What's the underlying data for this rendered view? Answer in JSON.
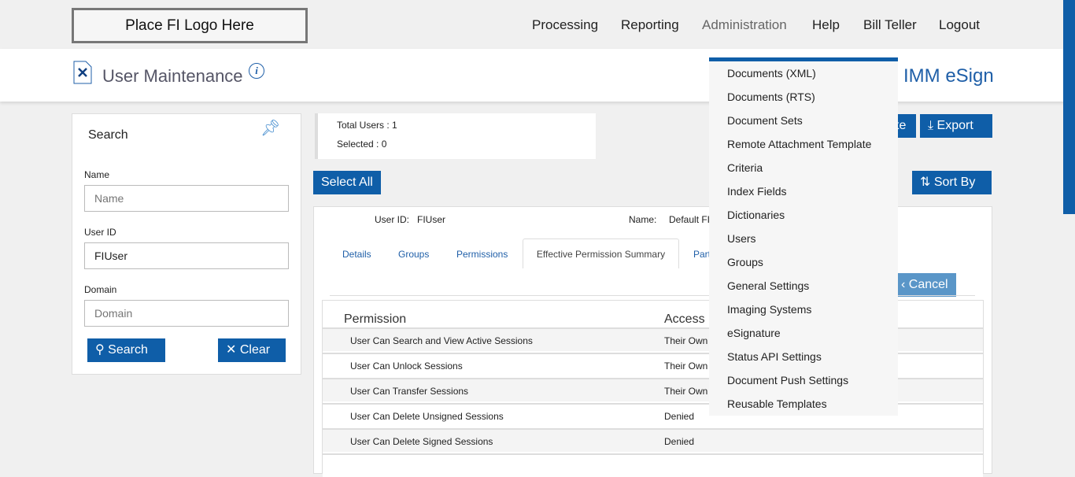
{
  "header": {
    "logo": "Place FI Logo Here",
    "nav": [
      "Processing",
      "Reporting",
      "Administration",
      "Help",
      "Bill Teller",
      "Logout"
    ],
    "page_title": "User Maintenance",
    "brand": "IMM eSign"
  },
  "search": {
    "title": "Search",
    "name_label": "Name",
    "name_placeholder": "Name",
    "userid_label": "User ID",
    "userid_value": "FIUser",
    "domain_label": "Domain",
    "domain_placeholder": "Domain",
    "search_btn": "Search",
    "clear_btn": "Clear"
  },
  "summary": {
    "total": "Total Users : 1",
    "selected": "Selected : 0"
  },
  "toolbar": {
    "select_all": "Select All",
    "delete_partial": "te",
    "export": "Export",
    "sort_by": "Sort By",
    "cancel": "Cancel"
  },
  "user": {
    "id_label": "User ID:",
    "id": "FIUser",
    "name_label": "Name:",
    "name": "Default FI"
  },
  "tabs": [
    "Details",
    "Groups",
    "Permissions",
    "Effective Permission Summary",
    "Part"
  ],
  "table": {
    "headers": [
      "Permission",
      "Access"
    ],
    "rows": [
      [
        "User Can Search and View Active Sessions",
        "Their Own"
      ],
      [
        "User Can Unlock Sessions",
        "Their Own"
      ],
      [
        "User Can Transfer Sessions",
        "Their Own"
      ],
      [
        "User Can Delete Unsigned Sessions",
        "Denied"
      ],
      [
        "User Can Delete Signed Sessions",
        "Denied"
      ]
    ]
  },
  "admin_menu": [
    "Documents (XML)",
    "Documents (RTS)",
    "Document Sets",
    "Remote Attachment Template",
    "Criteria",
    "Index Fields",
    "Dictionaries",
    "Users",
    "Groups",
    "General Settings",
    "Imaging Systems",
    "eSignature",
    "Status API Settings",
    "Document Push Settings",
    "Reusable Templates"
  ],
  "colors": {
    "accent": "#0f5ea8",
    "cancel": "#5a96c8"
  }
}
